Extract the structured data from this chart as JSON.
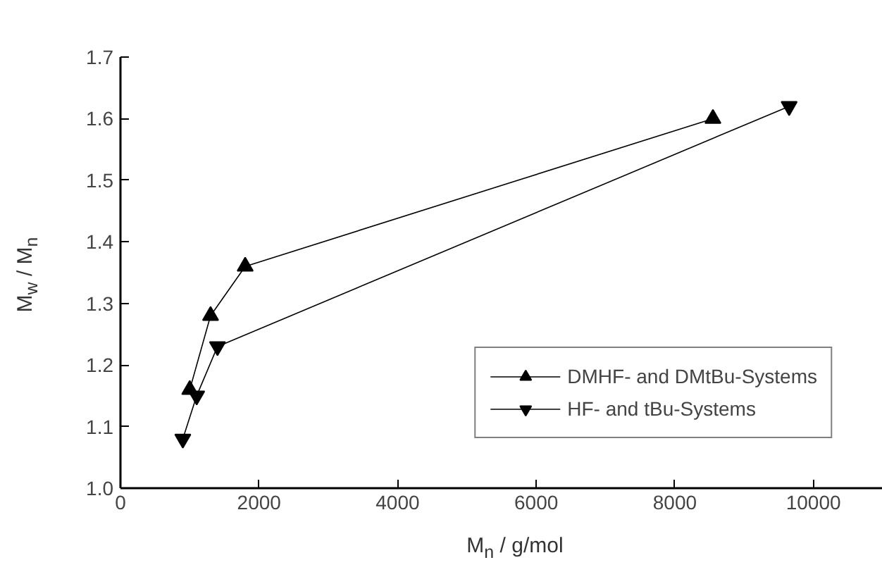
{
  "chart_data": {
    "type": "line",
    "xlabel": "M$_{n}$ / g/mol",
    "ylabel": "M$_{w}$ / M$_{n}$",
    "xlim": [
      0,
      11000
    ],
    "xticks": [
      0,
      2000,
      4000,
      6000,
      8000,
      10000
    ],
    "ylim": [
      1.0,
      1.7
    ],
    "yticks": [
      {
        "value": 1,
        "label": "1.0"
      },
      1.1,
      1.2,
      1.3,
      1.4,
      1.5,
      1.6,
      1.7
    ],
    "grid": false,
    "legend": "bottom right",
    "series": [
      {
        "name": "DMHF- and DMtBu-Systems",
        "color": "#000000",
        "marker": "triangle",
        "x": [
          1000,
          1300,
          1800,
          8550
        ],
        "values": [
          1.16,
          1.28,
          1.36,
          1.6
        ]
      },
      {
        "name": "HF- and tBu-Systems",
        "color": "#000000",
        "marker": "triangle",
        "x": [
          900,
          1100,
          1400,
          9650
        ],
        "values": [
          1.08,
          1.15,
          1.23,
          1.62
        ]
      }
    ]
  }
}
